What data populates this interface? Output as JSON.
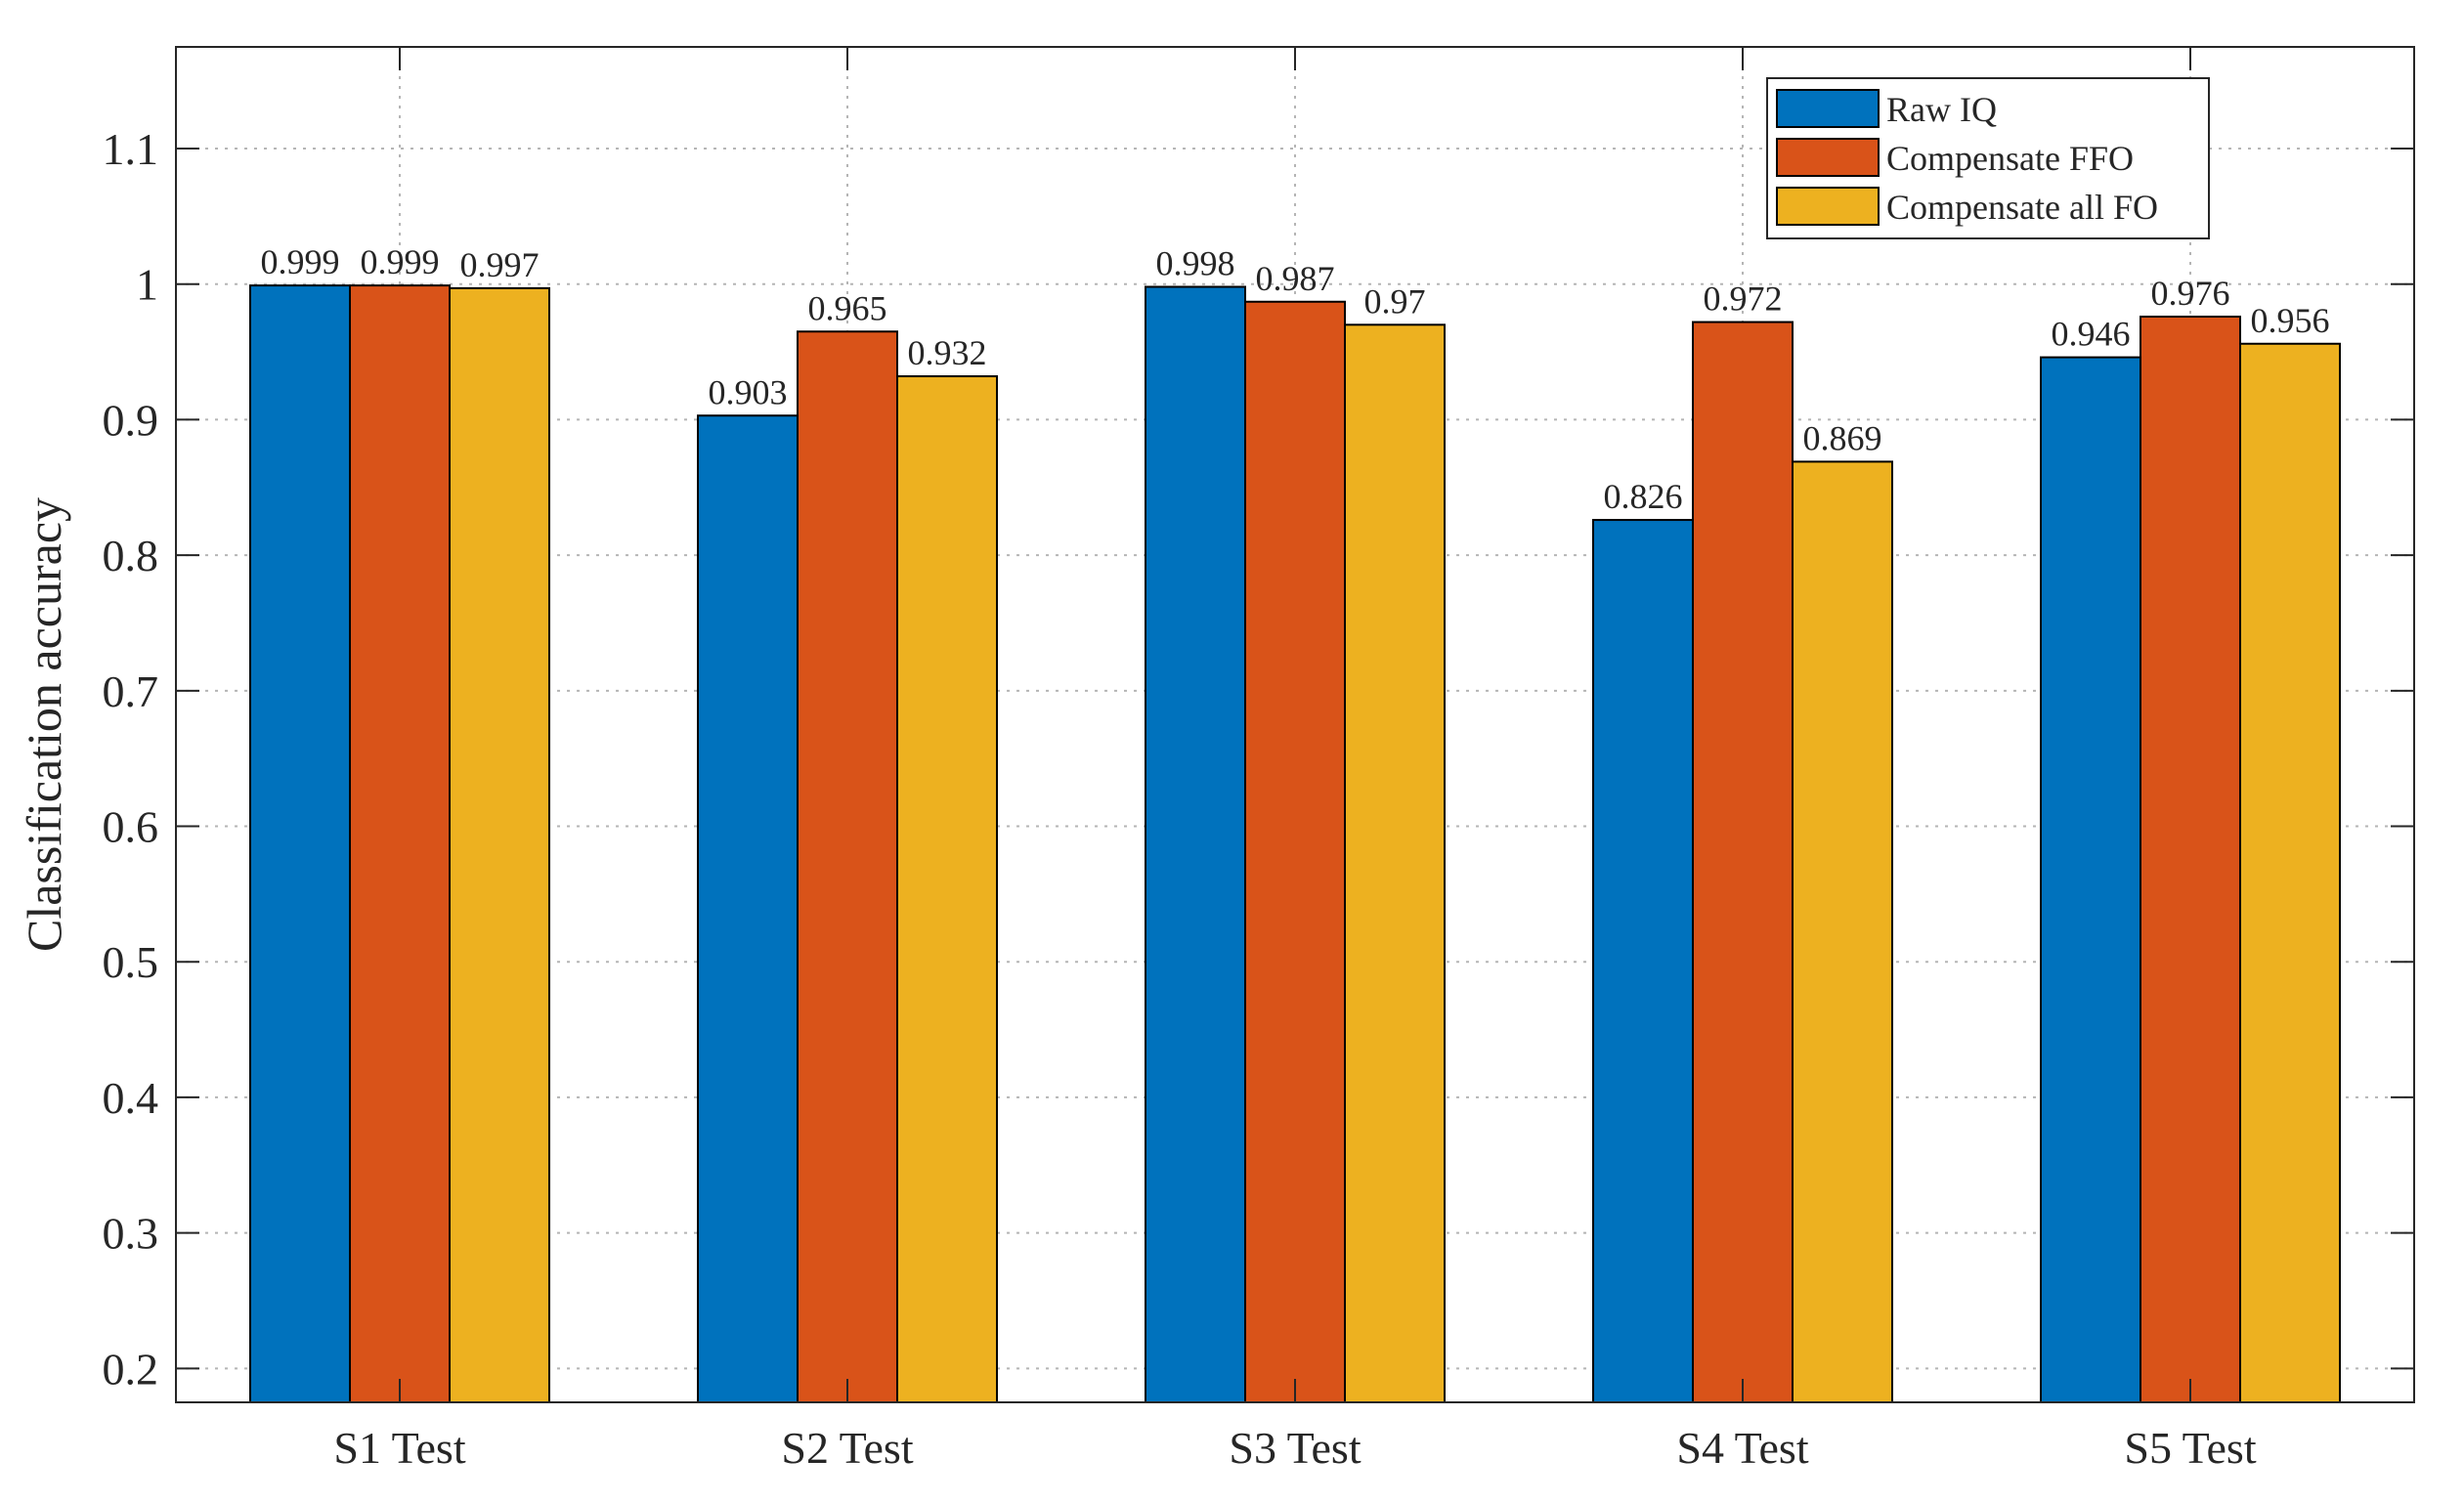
{
  "chart_data": {
    "type": "bar",
    "title": "",
    "xlabel": "",
    "ylabel": "Classification accuracy",
    "ylim": [
      0.175,
      1.175
    ],
    "yticks": [
      0.2,
      0.3,
      0.4,
      0.5,
      0.6,
      0.7,
      0.8,
      0.9,
      1,
      1.1
    ],
    "ytick_labels": [
      "0.2",
      "0.3",
      "0.4",
      "0.5",
      "0.6",
      "0.7",
      "0.8",
      "0.9",
      "1",
      "1.1"
    ],
    "grid": true,
    "legend_position": "top-right",
    "categories": [
      "S1 Test",
      "S2 Test",
      "S3 Test",
      "S4 Test",
      "S5 Test"
    ],
    "series": [
      {
        "name": "Raw IQ",
        "color": "#0072BD",
        "values": [
          0.999,
          0.903,
          0.998,
          0.826,
          0.946
        ],
        "labels": [
          "0.999",
          "0.903",
          "0.998",
          "0.826",
          "0.946"
        ]
      },
      {
        "name": "Compensate FFO",
        "color": "#D95319",
        "values": [
          0.999,
          0.965,
          0.987,
          0.972,
          0.976
        ],
        "labels": [
          "0.999",
          "0.965",
          "0.987",
          "0.972",
          "0.976"
        ]
      },
      {
        "name": "Compensate all FO",
        "color": "#EDB120",
        "values": [
          0.997,
          0.932,
          0.97,
          0.869,
          0.956
        ],
        "labels": [
          "0.997",
          "0.932",
          "0.97",
          "0.869",
          "0.956"
        ]
      }
    ]
  }
}
